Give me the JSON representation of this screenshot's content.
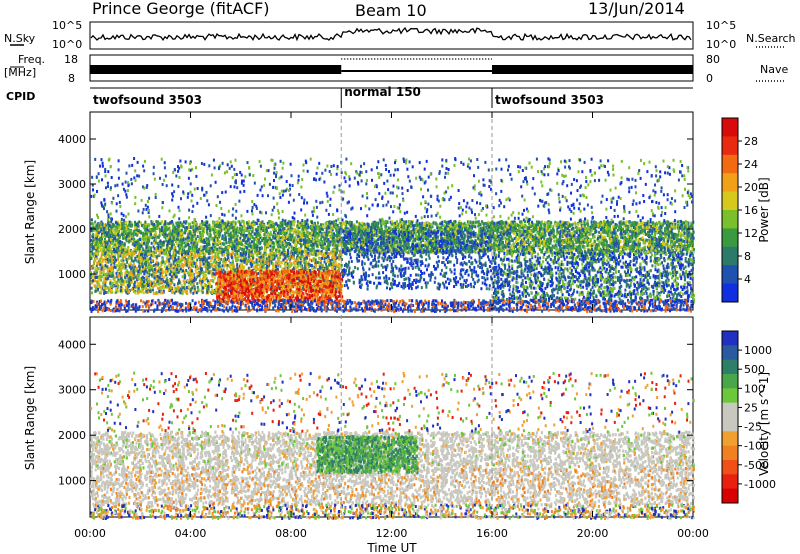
{
  "header": {
    "station": "Prince George (fitACF)",
    "beam": "Beam 10",
    "date": "13/Jun/2014"
  },
  "strip_labels": {
    "nsky": "N.Sky",
    "nsearch": "N.Search",
    "freq_line1": "Freq.",
    "freq_line2": "[MHz]",
    "nave": "Nave",
    "cpid": "CPID"
  },
  "strip_ticks": {
    "nsky_top": "10^5",
    "nsky_bottom": "10^0",
    "nsearch_top": "10^5",
    "nsearch_bottom": "10^0",
    "freq_top": "18",
    "freq_bottom": "8",
    "nave_top": "80",
    "nave_bottom": "0"
  },
  "cpid_segments": [
    {
      "label": "twofsound 3503",
      "start": "00:00"
    },
    {
      "label": "normal 150",
      "start": "10:00"
    },
    {
      "label": "twofsound 3503",
      "start": "16:00"
    }
  ],
  "colorbars": {
    "power": {
      "label": "Power [dB]",
      "ticks": [
        "4",
        "8",
        "12",
        "16",
        "20",
        "24",
        "28"
      ],
      "colors": [
        "#1030e0",
        "#2050b0",
        "#2e7a6a",
        "#3a9a40",
        "#7ac02a",
        "#d8c81e",
        "#f2a018",
        "#f26a12",
        "#e82a10",
        "#d80a0a"
      ]
    },
    "velocity": {
      "label": "Velocity [m s^-1]",
      "ticks": [
        "1000",
        "500",
        "100",
        "25",
        "-25",
        "-100",
        "-500",
        "-1000"
      ],
      "colors": [
        "#2030c0",
        "#2a5aa0",
        "#2e7e68",
        "#4aa64a",
        "#6cc83a",
        "#c8c8c0",
        "#c8c8c0",
        "#f0a030",
        "#f08020",
        "#f05018",
        "#e82010",
        "#d80000"
      ]
    }
  },
  "y_axis": {
    "label": "Slant Range [km]",
    "ticks": [
      "1000",
      "2000",
      "3000",
      "4000"
    ]
  },
  "x_axis": {
    "label": "Time UT",
    "ticks": [
      "00:00",
      "04:00",
      "08:00",
      "12:00",
      "16:00",
      "20:00",
      "00:00"
    ]
  },
  "chart_data": [
    {
      "type": "heatmap",
      "title": "Power",
      "xlabel": "Time UT",
      "ylabel": "Slant Range [km]",
      "xlim": [
        "00:00",
        "24:00"
      ],
      "ylim": [
        200,
        4600
      ],
      "colorbar": {
        "label": "Power [dB]",
        "range": [
          0,
          32
        ]
      },
      "mode_boundaries": [
        "10:00",
        "16:00"
      ],
      "echo_bands": [
        {
          "name": "upper band",
          "t_start": "00:00",
          "t_end": "24:00",
          "range_km": [
            1500,
            2200
          ],
          "power_db": 12
        },
        {
          "name": "lower band",
          "t_start": "00:00",
          "t_end": "10:00",
          "range_km": [
            400,
            1500
          ],
          "power_db": 20
        },
        {
          "name": "strong near-range echo",
          "t_start": "05:00",
          "t_end": "10:00",
          "range_km": [
            400,
            1300
          ],
          "power_db": 28
        }
      ]
    },
    {
      "type": "heatmap",
      "title": "Velocity",
      "xlabel": "Time UT",
      "ylabel": "Slant Range [km]",
      "xlim": [
        "00:00",
        "24:00"
      ],
      "ylim": [
        200,
        4600
      ],
      "colorbar": {
        "label": "Velocity [m s^-1]",
        "range": [
          -1000,
          1000
        ]
      },
      "mode_boundaries": [
        "10:00",
        "16:00"
      ],
      "echo_bands": [
        {
          "name": "ground scatter",
          "t_start": "00:00",
          "t_end": "24:00",
          "range_km": [
            1300,
            2100
          ],
          "velocity_ms": 0
        },
        {
          "name": "positive velocity patch",
          "t_start": "09:00",
          "t_end": "13:00",
          "range_km": [
            1200,
            2000
          ],
          "velocity_ms": 150
        }
      ]
    }
  ]
}
